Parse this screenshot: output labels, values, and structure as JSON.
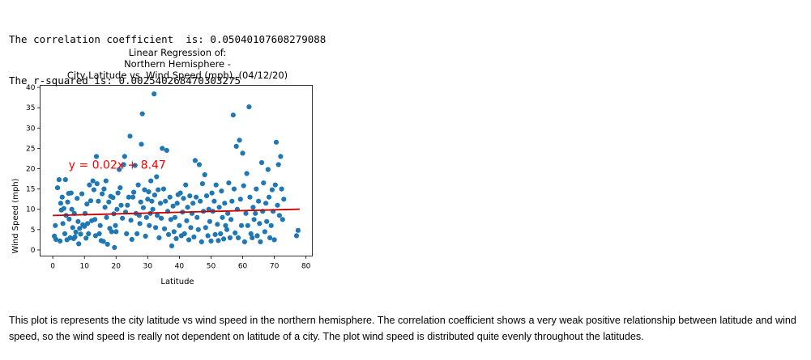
{
  "output": {
    "correlation_line": "The correlation coefficient  is: 0.05040107608279088",
    "rsquared_line": "The r-squared is: 0.002540268470303275"
  },
  "chart_data": {
    "type": "scatter",
    "title": [
      "Linear Regression of:",
      "Northern Hemisphere -",
      "City Latitude vs. Wind Speed (mph), (04/12/20)"
    ],
    "xlabel": "Latitude",
    "ylabel": "Wind Speed (mph)",
    "xlim": [
      -4,
      82
    ],
    "ylim": [
      -1.5,
      40.5
    ],
    "xticks": [
      0,
      10,
      20,
      30,
      40,
      50,
      60,
      70,
      80
    ],
    "yticks": [
      0,
      5,
      10,
      15,
      20,
      25,
      30,
      35,
      40
    ],
    "grid": false,
    "point_color": "#1f77b4",
    "regression": {
      "equation": "y = 0.02x + 8.47",
      "slope": 0.02,
      "intercept": 8.47,
      "x_range": [
        0,
        78
      ],
      "color": "#ff0000",
      "line_color": "#cc0000",
      "annotation_at": [
        5,
        20
      ]
    },
    "points": [
      [
        0.5,
        3.4
      ],
      [
        0.8,
        6.0
      ],
      [
        1.0,
        2.6
      ],
      [
        1.5,
        15.3
      ],
      [
        2.0,
        17.3
      ],
      [
        2.3,
        2.2
      ],
      [
        2.5,
        11.5
      ],
      [
        2.7,
        9.8
      ],
      [
        3.0,
        13.0
      ],
      [
        3.2,
        6.5
      ],
      [
        3.5,
        10.2
      ],
      [
        3.8,
        4.0
      ],
      [
        4.0,
        17.3
      ],
      [
        4.2,
        8.5
      ],
      [
        4.5,
        2.5
      ],
      [
        4.7,
        11.8
      ],
      [
        5.0,
        13.9
      ],
      [
        5.2,
        7.6
      ],
      [
        5.5,
        3.0
      ],
      [
        5.8,
        14.0
      ],
      [
        6.0,
        10.0
      ],
      [
        6.3,
        5.5
      ],
      [
        6.6,
        2.8
      ],
      [
        6.8,
        9.0
      ],
      [
        7.0,
        3.2
      ],
      [
        7.3,
        4.4
      ],
      [
        7.7,
        12.7
      ],
      [
        8.0,
        7.0
      ],
      [
        8.2,
        1.5
      ],
      [
        8.5,
        5.3
      ],
      [
        8.8,
        3.9
      ],
      [
        9.2,
        13.8
      ],
      [
        9.5,
        6.2
      ],
      [
        10.0,
        5.8
      ],
      [
        10.2,
        9.0
      ],
      [
        10.5,
        2.9
      ],
      [
        10.8,
        11.3
      ],
      [
        11.0,
        6.5
      ],
      [
        11.3,
        4.0
      ],
      [
        11.6,
        16.0
      ],
      [
        12.0,
        12.1
      ],
      [
        12.3,
        7.2
      ],
      [
        12.7,
        17.0
      ],
      [
        13.0,
        14.8
      ],
      [
        13.3,
        7.5
      ],
      [
        13.5,
        3.5
      ],
      [
        13.8,
        23.0
      ],
      [
        14.0,
        16.3
      ],
      [
        14.4,
        12.0
      ],
      [
        14.7,
        4.0
      ],
      [
        15.0,
        6.0
      ],
      [
        15.3,
        2.3
      ],
      [
        15.6,
        13.8
      ],
      [
        16.0,
        2.1
      ],
      [
        16.2,
        15.0
      ],
      [
        16.5,
        10.5
      ],
      [
        16.8,
        17.0
      ],
      [
        17.0,
        8.0
      ],
      [
        17.3,
        1.4
      ],
      [
        17.7,
        11.8
      ],
      [
        18.0,
        5.3
      ],
      [
        18.3,
        13.2
      ],
      [
        18.6,
        4.5
      ],
      [
        19.0,
        12.9
      ],
      [
        19.3,
        8.9
      ],
      [
        19.5,
        0.6
      ],
      [
        19.8,
        6.0
      ],
      [
        20.0,
        4.5
      ],
      [
        20.3,
        10.0
      ],
      [
        20.6,
        14.0
      ],
      [
        21.0,
        19.8
      ],
      [
        21.3,
        15.3
      ],
      [
        21.6,
        11.0
      ],
      [
        22.0,
        7.8
      ],
      [
        22.4,
        21.0
      ],
      [
        22.7,
        23.0
      ],
      [
        23.0,
        9.3
      ],
      [
        23.3,
        4.0
      ],
      [
        23.6,
        11.0
      ],
      [
        24.0,
        13.0
      ],
      [
        24.4,
        28.0
      ],
      [
        24.7,
        7.3
      ],
      [
        25.0,
        2.6
      ],
      [
        25.3,
        13.0
      ],
      [
        25.6,
        14.2
      ],
      [
        26.0,
        20.8
      ],
      [
        26.3,
        9.0
      ],
      [
        26.6,
        4.0
      ],
      [
        27.0,
        16.0
      ],
      [
        27.3,
        8.5
      ],
      [
        27.5,
        6.5
      ],
      [
        27.8,
        11.8
      ],
      [
        28.0,
        26.0
      ],
      [
        28.3,
        33.5
      ],
      [
        28.6,
        10.4
      ],
      [
        29.0,
        14.8
      ],
      [
        29.3,
        3.4
      ],
      [
        29.6,
        8.0
      ],
      [
        30.0,
        12.5
      ],
      [
        30.3,
        14.3
      ],
      [
        30.5,
        6.0
      ],
      [
        30.8,
        9.0
      ],
      [
        31.0,
        17.0
      ],
      [
        31.3,
        12.0
      ],
      [
        31.6,
        10.0
      ],
      [
        32.0,
        38.4
      ],
      [
        32.2,
        13.5
      ],
      [
        32.5,
        5.5
      ],
      [
        32.8,
        18.0
      ],
      [
        33.0,
        8.5
      ],
      [
        33.3,
        14.8
      ],
      [
        33.6,
        3.0
      ],
      [
        34.0,
        11.5
      ],
      [
        34.3,
        7.8
      ],
      [
        34.6,
        25.0
      ],
      [
        35.0,
        15.0
      ],
      [
        35.3,
        5.2
      ],
      [
        35.6,
        12.0
      ],
      [
        36.0,
        24.5
      ],
      [
        36.3,
        9.5
      ],
      [
        36.6,
        3.8
      ],
      [
        37.0,
        13.0
      ],
      [
        37.3,
        7.5
      ],
      [
        37.6,
        1.0
      ],
      [
        38.0,
        10.8
      ],
      [
        38.3,
        4.5
      ],
      [
        38.6,
        8.0
      ],
      [
        39.0,
        2.8
      ],
      [
        39.3,
        11.5
      ],
      [
        39.6,
        13.6
      ],
      [
        40.0,
        6.0
      ],
      [
        40.3,
        14.0
      ],
      [
        40.6,
        3.5
      ],
      [
        41.0,
        9.3
      ],
      [
        41.3,
        12.7
      ],
      [
        41.6,
        4.0
      ],
      [
        42.0,
        16.0
      ],
      [
        42.3,
        7.2
      ],
      [
        42.6,
        10.5
      ],
      [
        43.0,
        2.5
      ],
      [
        43.3,
        13.3
      ],
      [
        43.6,
        5.5
      ],
      [
        44.0,
        9.0
      ],
      [
        44.3,
        11.5
      ],
      [
        44.6,
        3.2
      ],
      [
        45.0,
        22.0
      ],
      [
        45.3,
        13.0
      ],
      [
        45.6,
        8.0
      ],
      [
        46.0,
        5.0
      ],
      [
        46.3,
        21.0
      ],
      [
        46.6,
        12.0
      ],
      [
        47.0,
        2.0
      ],
      [
        47.3,
        16.3
      ],
      [
        47.6,
        9.5
      ],
      [
        48.0,
        18.5
      ],
      [
        48.3,
        5.5
      ],
      [
        48.6,
        13.3
      ],
      [
        49.0,
        3.5
      ],
      [
        49.3,
        10.0
      ],
      [
        49.6,
        7.0
      ],
      [
        50.0,
        2.2
      ],
      [
        50.3,
        14.0
      ],
      [
        50.6,
        9.5
      ],
      [
        51.0,
        12.0
      ],
      [
        51.3,
        3.8
      ],
      [
        51.6,
        16.0
      ],
      [
        52.0,
        6.3
      ],
      [
        52.3,
        2.3
      ],
      [
        52.6,
        10.5
      ],
      [
        53.0,
        4.0
      ],
      [
        53.3,
        14.5
      ],
      [
        53.6,
        8.0
      ],
      [
        54.0,
        2.7
      ],
      [
        54.3,
        11.5
      ],
      [
        54.6,
        6.0
      ],
      [
        55.0,
        5.0
      ],
      [
        55.3,
        9.0
      ],
      [
        55.6,
        16.5
      ],
      [
        56.0,
        3.0
      ],
      [
        56.3,
        7.5
      ],
      [
        56.6,
        12.0
      ],
      [
        57.0,
        33.2
      ],
      [
        57.3,
        15.0
      ],
      [
        57.6,
        4.2
      ],
      [
        58.0,
        25.5
      ],
      [
        58.3,
        10.0
      ],
      [
        58.6,
        3.0
      ],
      [
        59.0,
        27.0
      ],
      [
        59.3,
        12.5
      ],
      [
        59.6,
        6.0
      ],
      [
        60.0,
        23.8
      ],
      [
        60.3,
        15.8
      ],
      [
        60.6,
        2.0
      ],
      [
        61.0,
        9.0
      ],
      [
        61.3,
        18.8
      ],
      [
        61.6,
        6.0
      ],
      [
        62.0,
        35.2
      ],
      [
        62.3,
        13.0
      ],
      [
        62.6,
        4.0
      ],
      [
        63.0,
        3.0
      ],
      [
        63.3,
        10.5
      ],
      [
        63.6,
        7.5
      ],
      [
        64.0,
        9.0
      ],
      [
        64.3,
        15.0
      ],
      [
        64.6,
        3.5
      ],
      [
        65.0,
        12.0
      ],
      [
        65.3,
        6.5
      ],
      [
        65.6,
        2.0
      ],
      [
        66.0,
        21.5
      ],
      [
        66.3,
        9.5
      ],
      [
        66.6,
        16.5
      ],
      [
        67.0,
        4.5
      ],
      [
        67.3,
        11.5
      ],
      [
        67.6,
        7.0
      ],
      [
        68.0,
        19.8
      ],
      [
        68.3,
        13.0
      ],
      [
        68.6,
        3.0
      ],
      [
        69.0,
        6.0
      ],
      [
        69.3,
        14.8
      ],
      [
        69.6,
        9.5
      ],
      [
        70.0,
        2.5
      ],
      [
        70.3,
        16.0
      ],
      [
        70.6,
        26.5
      ],
      [
        71.0,
        11.0
      ],
      [
        71.3,
        21.0
      ],
      [
        71.6,
        8.5
      ],
      [
        72.0,
        23.0
      ],
      [
        72.3,
        15.0
      ],
      [
        72.6,
        7.5
      ],
      [
        73.0,
        12.5
      ],
      [
        77.0,
        3.5
      ],
      [
        77.5,
        4.8
      ]
    ]
  },
  "description": "This plot is represents the city latitude vs wind speed in the northern hemisphere. The correlation coefficient shows a very weak positive relationship between latitude and wind speed, so the wind speed is really not dependent on latitude of a city. The plot wind speed is distributed quite evenly throughout the latitudes."
}
